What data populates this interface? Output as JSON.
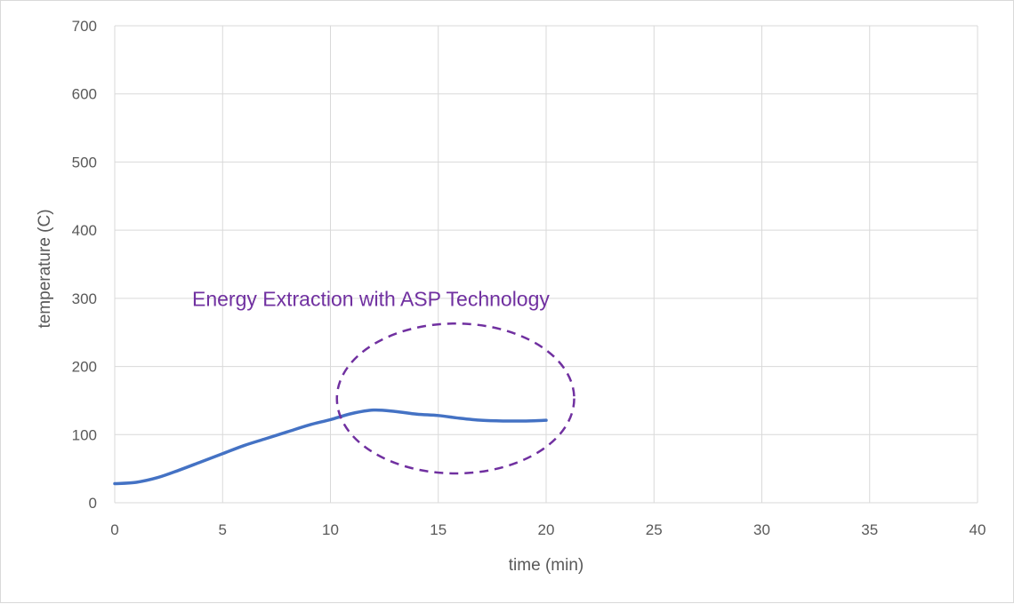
{
  "chart_data": {
    "type": "line",
    "title": "",
    "xlabel": "time (min)",
    "ylabel": "temperature (C)",
    "xlim": [
      0,
      40
    ],
    "ylim": [
      0,
      700
    ],
    "x_ticks": [
      0,
      5,
      10,
      15,
      20,
      25,
      30,
      35,
      40
    ],
    "y_ticks": [
      0,
      100,
      200,
      300,
      400,
      500,
      600,
      700
    ],
    "grid": true,
    "legend": "none",
    "series": [
      {
        "color": "#4472c4",
        "x": [
          0,
          1,
          2,
          3,
          4,
          5,
          6,
          7,
          8,
          9,
          10,
          11,
          12,
          13,
          14,
          15,
          16,
          17,
          18,
          19,
          20
        ],
        "y": [
          28,
          30,
          37,
          48,
          60,
          72,
          84,
          94,
          104,
          114,
          122,
          131,
          136,
          134,
          130,
          128,
          124,
          121,
          120,
          120,
          121
        ]
      }
    ],
    "annotations": [
      {
        "text": "Energy Extraction with ASP Technology",
        "color": "#7030a0",
        "text_at": [
          4,
          299
        ],
        "ellipse_center": [
          15.8,
          153
        ],
        "ellipse_radii": [
          5.5,
          110
        ]
      }
    ]
  }
}
